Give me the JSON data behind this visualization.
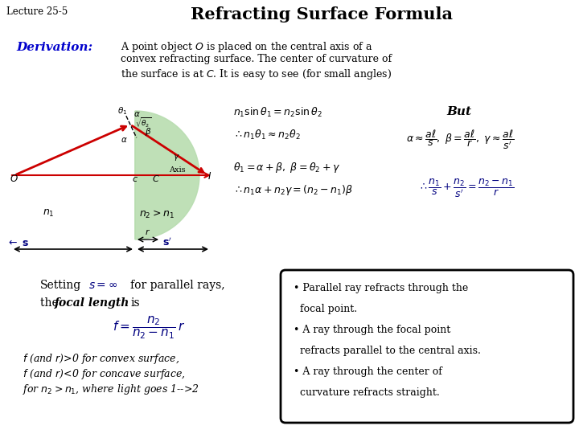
{
  "title": "Refracting Surface Formula",
  "lecture_label": "Lecture 25-5",
  "bg_color": "#ffffff",
  "title_color": "#000000",
  "derivation_label": "Derivation:",
  "derivation_color": "#0000cc",
  "green_fill": "#b8ddb0",
  "red_color": "#cc0000",
  "blue_color": "#000080",
  "right_box_bg": "#ffffff",
  "desc_lines": [
    "A point object $O$ is placed on the central axis of a",
    "convex refracting surface. The center of curvature of",
    "the surface is at $C$. It is easy to see (for small angles)"
  ],
  "right_box_lines": [
    "• Parallel ray refracts through the",
    "  focal point.",
    "• A ray through the focal point",
    "  refracts parallel to the central axis.",
    "• A ray through the center of",
    "  curvature refracts straight."
  ]
}
